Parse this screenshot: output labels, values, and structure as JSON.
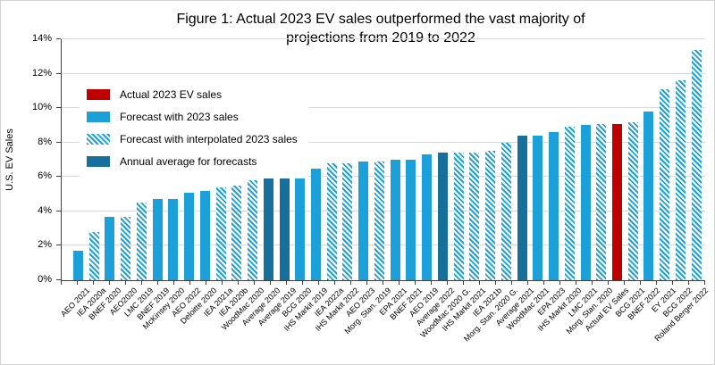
{
  "figure": {
    "title_line1": "Figure 1: Actual 2023 EV sales outperformed the vast majority of",
    "title_line2": "projections from 2019 to 2022"
  },
  "axes": {
    "y_title": "U.S. EV Sales",
    "y_ticks": [
      {
        "label": "0%",
        "value": 0
      },
      {
        "label": "2%",
        "value": 2
      },
      {
        "label": "4%",
        "value": 4
      },
      {
        "label": "6%",
        "value": 6
      },
      {
        "label": "8%",
        "value": 8
      },
      {
        "label": "10%",
        "value": 10
      },
      {
        "label": "12%",
        "value": 12
      },
      {
        "label": "14%",
        "value": 14
      }
    ]
  },
  "legend": [
    {
      "label": "Actual 2023 EV sales",
      "type": "actual"
    },
    {
      "label": "Forecast with 2023 sales",
      "type": "forecast"
    },
    {
      "label": "Forecast with interpolated 2023 sales",
      "type": "interpolated"
    },
    {
      "label": "Annual average for forecasts",
      "type": "average"
    }
  ],
  "colors": {
    "actual": "#c00000",
    "forecast": "#1ca0d9",
    "average": "#176f9c",
    "gridline": "#d9d9d9",
    "axis": "#404040"
  },
  "chart_data": {
    "type": "bar",
    "title": "Figure 1: Actual 2023 EV sales outperformed the vast majority of projections from 2019 to 2022",
    "xlabel": "",
    "ylabel": "U.S. EV Sales",
    "ylim": [
      0,
      14
    ],
    "unit": "percent",
    "grid": true,
    "legend_position": "top-left-inside",
    "bars": [
      {
        "label": "AEO 2021",
        "value": 1.7,
        "series": "forecast"
      },
      {
        "label": "IEA 2020a",
        "value": 2.8,
        "series": "interpolated"
      },
      {
        "label": "BNEF 2020",
        "value": 3.7,
        "series": "forecast"
      },
      {
        "label": "AEO2020",
        "value": 3.7,
        "series": "interpolated"
      },
      {
        "label": "LMC 2019",
        "value": 4.5,
        "series": "interpolated"
      },
      {
        "label": "BNEF 2019",
        "value": 4.7,
        "series": "forecast"
      },
      {
        "label": "McKinsey 2020",
        "value": 4.7,
        "series": "forecast"
      },
      {
        "label": "AEO 2022",
        "value": 5.1,
        "series": "forecast"
      },
      {
        "label": "Deloitte 2020",
        "value": 5.2,
        "series": "forecast"
      },
      {
        "label": "IEA 2021a",
        "value": 5.4,
        "series": "interpolated"
      },
      {
        "label": "IEA 2020b",
        "value": 5.5,
        "series": "interpolated"
      },
      {
        "label": "WoodMac 2020",
        "value": 5.8,
        "series": "interpolated"
      },
      {
        "label": "Average 2020",
        "value": 5.9,
        "series": "average"
      },
      {
        "label": "Average 2019",
        "value": 6.0,
        "series": "average"
      },
      {
        "label": "BCG 2020",
        "value": 6.0,
        "series": "forecast"
      },
      {
        "label": "IHS Markit 2019",
        "value": 6.5,
        "series": "forecast"
      },
      {
        "label": "IEA 2022a",
        "value": 6.8,
        "series": "interpolated"
      },
      {
        "label": "IHS Markit 2022",
        "value": 6.8,
        "series": "interpolated"
      },
      {
        "label": "AEO 2023",
        "value": 6.9,
        "series": "forecast"
      },
      {
        "label": "Morg. Stan. 2019",
        "value": 6.9,
        "series": "interpolated"
      },
      {
        "label": "EPA 2021",
        "value": 7.0,
        "series": "forecast"
      },
      {
        "label": "BNEF 2021",
        "value": 7.0,
        "series": "forecast"
      },
      {
        "label": "AEO 2019",
        "value": 7.3,
        "series": "forecast"
      },
      {
        "label": "Average 2022",
        "value": 7.4,
        "series": "average"
      },
      {
        "label": "WoodMac 2020 G.",
        "value": 7.4,
        "series": "interpolated"
      },
      {
        "label": "IHS Markit 2021",
        "value": 7.4,
        "series": "interpolated"
      },
      {
        "label": "IEA 2021b",
        "value": 7.5,
        "series": "interpolated"
      },
      {
        "label": "Morg. Stan. 2020 G.",
        "value": 8.0,
        "series": "interpolated"
      },
      {
        "label": "Average 2021",
        "value": 8.4,
        "series": "average"
      },
      {
        "label": "WoodMac 2021",
        "value": 8.4,
        "series": "forecast"
      },
      {
        "label": "EPA 2023",
        "value": 8.6,
        "series": "forecast"
      },
      {
        "label": "IHS Markit 2020",
        "value": 8.9,
        "series": "interpolated"
      },
      {
        "label": "LMC 2021",
        "value": 9.0,
        "series": "forecast"
      },
      {
        "label": "Morg. Stan. 2020",
        "value": 9.1,
        "series": "interpolated"
      },
      {
        "label": "Actual EV Sales",
        "value": 9.1,
        "series": "actual"
      },
      {
        "label": "BCG 2021",
        "value": 9.2,
        "series": "interpolated"
      },
      {
        "label": "BNEF 2022",
        "value": 9.8,
        "series": "forecast"
      },
      {
        "label": "EY 2021",
        "value": 11.1,
        "series": "interpolated"
      },
      {
        "label": "BCG 2022",
        "value": 11.6,
        "series": "interpolated"
      },
      {
        "label": "Roland Berger 2022",
        "value": 13.4,
        "series": "interpolated"
      }
    ]
  }
}
